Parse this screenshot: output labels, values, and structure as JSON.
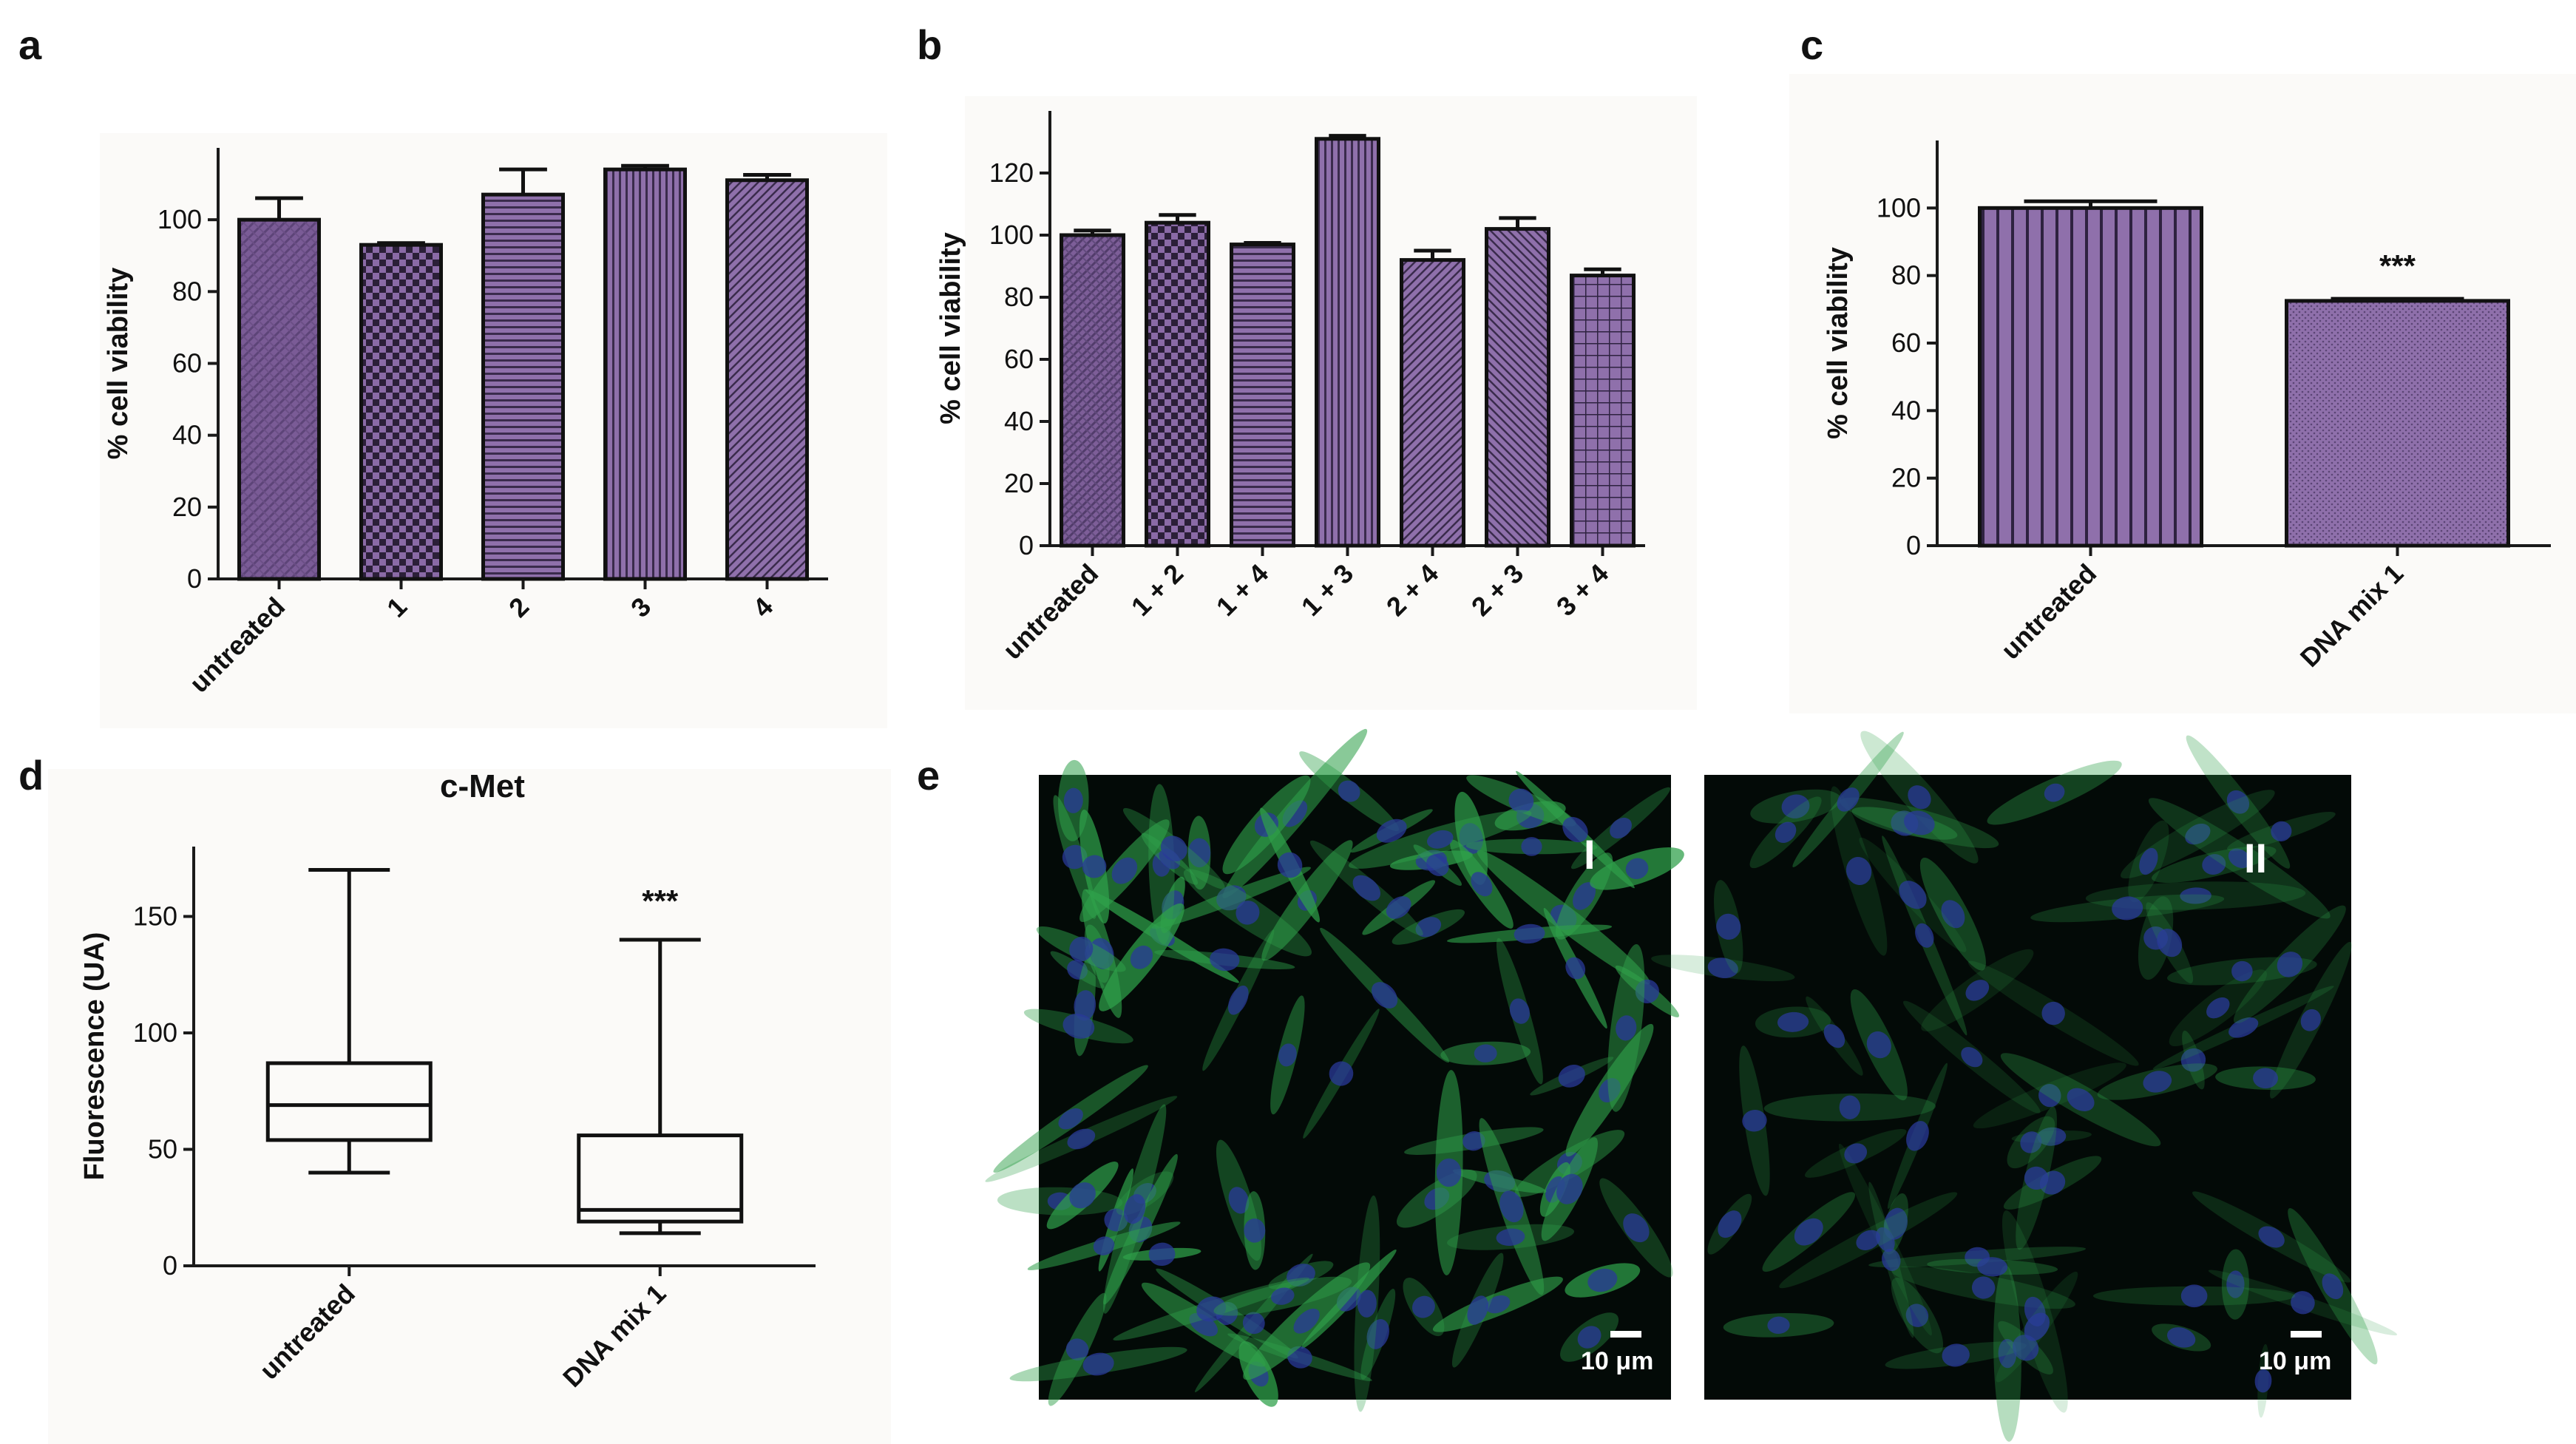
{
  "panels": {
    "a": "a",
    "b": "b",
    "c": "c",
    "d": "d",
    "e": "e"
  },
  "colors": {
    "bar_fill": "#8a6aa6",
    "bar_dark": "#4e3a63",
    "box_fill": "#8a6aa6",
    "panel_bg": "#fbfaf8",
    "micrograph_bg": "#030a07",
    "cell_green": "#2fa04a",
    "nucleus_blue": "#2a3a9a"
  },
  "chart_data": [
    {
      "id": "a",
      "type": "bar",
      "ylabel": "% cell viability",
      "ylim": [
        0,
        120
      ],
      "yticks": [
        0,
        20,
        40,
        60,
        80,
        100
      ],
      "categories": [
        "untreated",
        "1",
        "2",
        "3",
        "4"
      ],
      "values": [
        100,
        93,
        107,
        114,
        111
      ],
      "errors": [
        6,
        0.5,
        7,
        1,
        1.5
      ],
      "patterns": [
        "pat-a-untreated",
        "pat-checker",
        "pat-hlines",
        "pat-vlines",
        "pat-diag-down"
      ]
    },
    {
      "id": "b",
      "type": "bar",
      "ylabel": "% cell viability",
      "ylim": [
        0,
        140
      ],
      "yticks": [
        0,
        20,
        40,
        60,
        80,
        100,
        120
      ],
      "categories": [
        "untreated",
        "1 + 2",
        "1 + 4",
        "1 + 3",
        "2 + 4",
        "2 + 3",
        "3 + 4"
      ],
      "values": [
        100,
        104,
        97,
        131,
        92,
        102,
        87
      ],
      "errors": [
        1.5,
        2.5,
        0.5,
        1,
        3,
        3.5,
        2
      ],
      "patterns": [
        "pat-b-untreated",
        "pat-checker",
        "pat-hlines",
        "pat-vlines",
        "pat-diag-down",
        "pat-diag-up",
        "pat-grid"
      ]
    },
    {
      "id": "c",
      "type": "bar",
      "ylabel": "% cell viability",
      "ylim": [
        0,
        120
      ],
      "yticks": [
        0,
        20,
        40,
        60,
        80,
        100
      ],
      "categories": [
        "untreated",
        "DNA mix 1"
      ],
      "values": [
        100,
        72.5
      ],
      "errors": [
        2,
        0.6
      ],
      "annotations": [
        "",
        "***"
      ],
      "patterns": [
        "pat-vlines-wide",
        "pat-dots"
      ]
    },
    {
      "id": "d",
      "type": "box",
      "title": "c-Met",
      "ylabel": "Fluorescence (UA)",
      "ylim": [
        0,
        180
      ],
      "yticks": [
        0,
        50,
        100,
        150
      ],
      "categories": [
        "untreated",
        "DNA mix 1"
      ],
      "boxes": [
        {
          "min": 40,
          "q1": 54,
          "median": 69,
          "q3": 87,
          "max": 170
        },
        {
          "min": 14,
          "q1": 19,
          "median": 24,
          "q3": 56,
          "max": 140
        }
      ],
      "annotations": [
        "",
        "***"
      ]
    }
  ],
  "micrographs": [
    {
      "label": "I",
      "scale_bar": "10 μm",
      "density": "high"
    },
    {
      "label": "II",
      "scale_bar": "10 μm",
      "density": "low"
    }
  ]
}
